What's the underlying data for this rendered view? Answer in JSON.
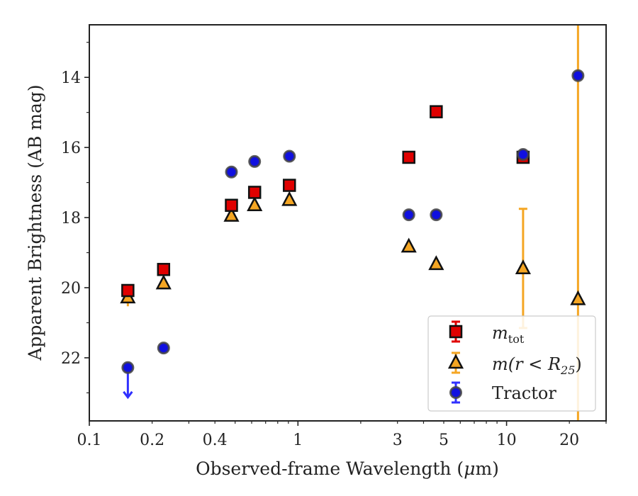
{
  "chart_data": {
    "type": "scatter",
    "xlabel_main": "Observed-frame Wavelength (",
    "xlabel_mu": "μ",
    "xlabel_unit": "m)",
    "ylabel": "Apparent Brightness (AB mag)",
    "xscale": "log",
    "xlim": [
      0.1,
      30
    ],
    "ylim": [
      23.8,
      12.5
    ],
    "y_inverted": true,
    "x_tick_labels": [
      "0.1",
      "0.2",
      "0.4",
      "1",
      "3",
      "5",
      "10",
      "20"
    ],
    "y_tick_labels": [
      "14",
      "16",
      "18",
      "20",
      "22"
    ],
    "legend": {
      "placement": "lower-right",
      "entries": [
        {
          "label_main": "m",
          "label_sub": "tot",
          "marker": "square",
          "color": "#e00000",
          "errorbar_color": "#e00000"
        },
        {
          "label_main": "m(r < R",
          "label_sub": "25",
          "label_end": ")",
          "marker": "triangle",
          "color": "#f5a623",
          "errorbar_color": "#f5a623"
        },
        {
          "label_main": "Tractor",
          "marker": "circle",
          "color": "#1010e0",
          "errorbar_color": "#3030ff"
        }
      ]
    },
    "series": [
      {
        "name": "m_tot",
        "marker": "square",
        "color": "#e00000",
        "points": [
          {
            "x": 0.153,
            "y": 20.08,
            "yerr": 0.12
          },
          {
            "x": 0.227,
            "y": 19.48,
            "yerr": 0.05
          },
          {
            "x": 0.48,
            "y": 17.65,
            "yerr": 0.05
          },
          {
            "x": 0.62,
            "y": 17.28,
            "yerr": 0.05
          },
          {
            "x": 0.91,
            "y": 17.08,
            "yerr": 0.05
          },
          {
            "x": 3.4,
            "y": 16.28,
            "yerr": 0.05
          },
          {
            "x": 4.6,
            "y": 14.98,
            "yerr": 0.05
          },
          {
            "x": 12.0,
            "y": 16.28,
            "yerr": 0.1
          }
        ]
      },
      {
        "name": "m(r<R25)",
        "marker": "triangle",
        "color": "#f5a623",
        "points": [
          {
            "x": 0.153,
            "y": 20.28,
            "yerr": 0.25
          },
          {
            "x": 0.227,
            "y": 19.88,
            "yerr": 0.05
          },
          {
            "x": 0.48,
            "y": 17.95,
            "yerr": 0.05
          },
          {
            "x": 0.62,
            "y": 17.65,
            "yerr": 0.05
          },
          {
            "x": 0.91,
            "y": 17.5,
            "yerr": 0.05
          },
          {
            "x": 3.4,
            "y": 18.83,
            "yerr": 0.05
          },
          {
            "x": 4.6,
            "y": 19.33,
            "yerr": 0.05
          },
          {
            "x": 12.0,
            "y": 19.45,
            "yerr_low": 1.7,
            "yerr_high": 1.7
          },
          {
            "x": 22.0,
            "y": 20.33,
            "yerr": 12.0
          }
        ]
      },
      {
        "name": "Tractor",
        "marker": "circle",
        "color": "#1010e0",
        "points": [
          {
            "x": 0.153,
            "y": 22.28,
            "upper_limit": true
          },
          {
            "x": 0.227,
            "y": 21.72,
            "yerr": 0.05
          },
          {
            "x": 0.48,
            "y": 16.7,
            "yerr": 0.05
          },
          {
            "x": 0.62,
            "y": 16.4,
            "yerr": 0.05
          },
          {
            "x": 0.91,
            "y": 16.25,
            "yerr": 0.05
          },
          {
            "x": 3.4,
            "y": 17.92,
            "yerr": 0.05
          },
          {
            "x": 4.6,
            "y": 17.92,
            "yerr": 0.05
          },
          {
            "x": 12.0,
            "y": 16.2,
            "yerr": 0.05
          },
          {
            "x": 22.0,
            "y": 13.95,
            "yerr": 0.05
          }
        ]
      }
    ]
  }
}
